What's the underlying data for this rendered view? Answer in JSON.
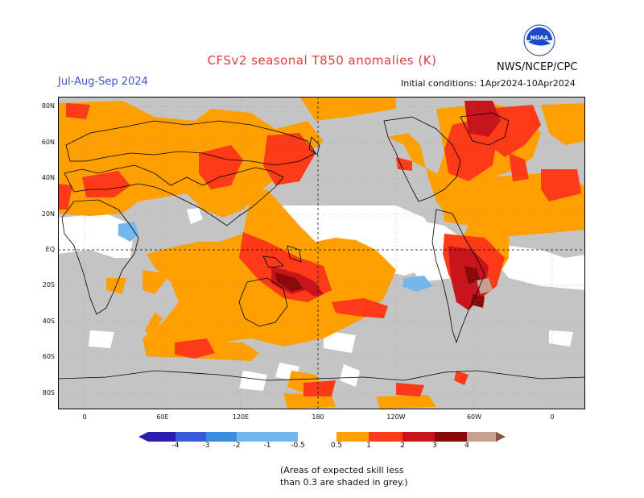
{
  "title": "CFSv2 seasonal T850 anomalies (K)",
  "season": "Jul-Aug-Sep 2024",
  "initial_conditions": "Initial conditions: 1Apr2024-10Apr2024",
  "agency": "NWS/NCEP/CPC",
  "logo_text": "NOAA",
  "lat_labels": [
    "80N",
    "60N",
    "40N",
    "20N",
    "EQ",
    "20S",
    "40S",
    "60S",
    "80S"
  ],
  "lon_labels": [
    "0",
    "60E",
    "120E",
    "180",
    "120W",
    "60W",
    "0"
  ],
  "colorbar": {
    "labels": [
      "-4",
      "-3",
      "-2",
      "-1",
      "-0.5",
      "0.5",
      "1",
      "2",
      "3",
      "4"
    ],
    "colors": [
      "#2b1db0",
      "#3a5ad8",
      "#3b8de0",
      "#74b6f0",
      "#ffffff",
      "#ffa000",
      "#ff3a18",
      "#c8141c",
      "#8a0a0a",
      "#c8a090",
      "#8a5040"
    ]
  },
  "note": [
    "(Areas of expected skill less",
    "than 0.3 are shaded in grey.)"
  ],
  "colors": {
    "grey": "#c4c4c4",
    "orange": "#ffa000",
    "red": "#ff3a18",
    "darkred": "#c8141c",
    "maroon": "#8a0a0a",
    "lightblue": "#74b6f0",
    "white": "#ffffff"
  }
}
